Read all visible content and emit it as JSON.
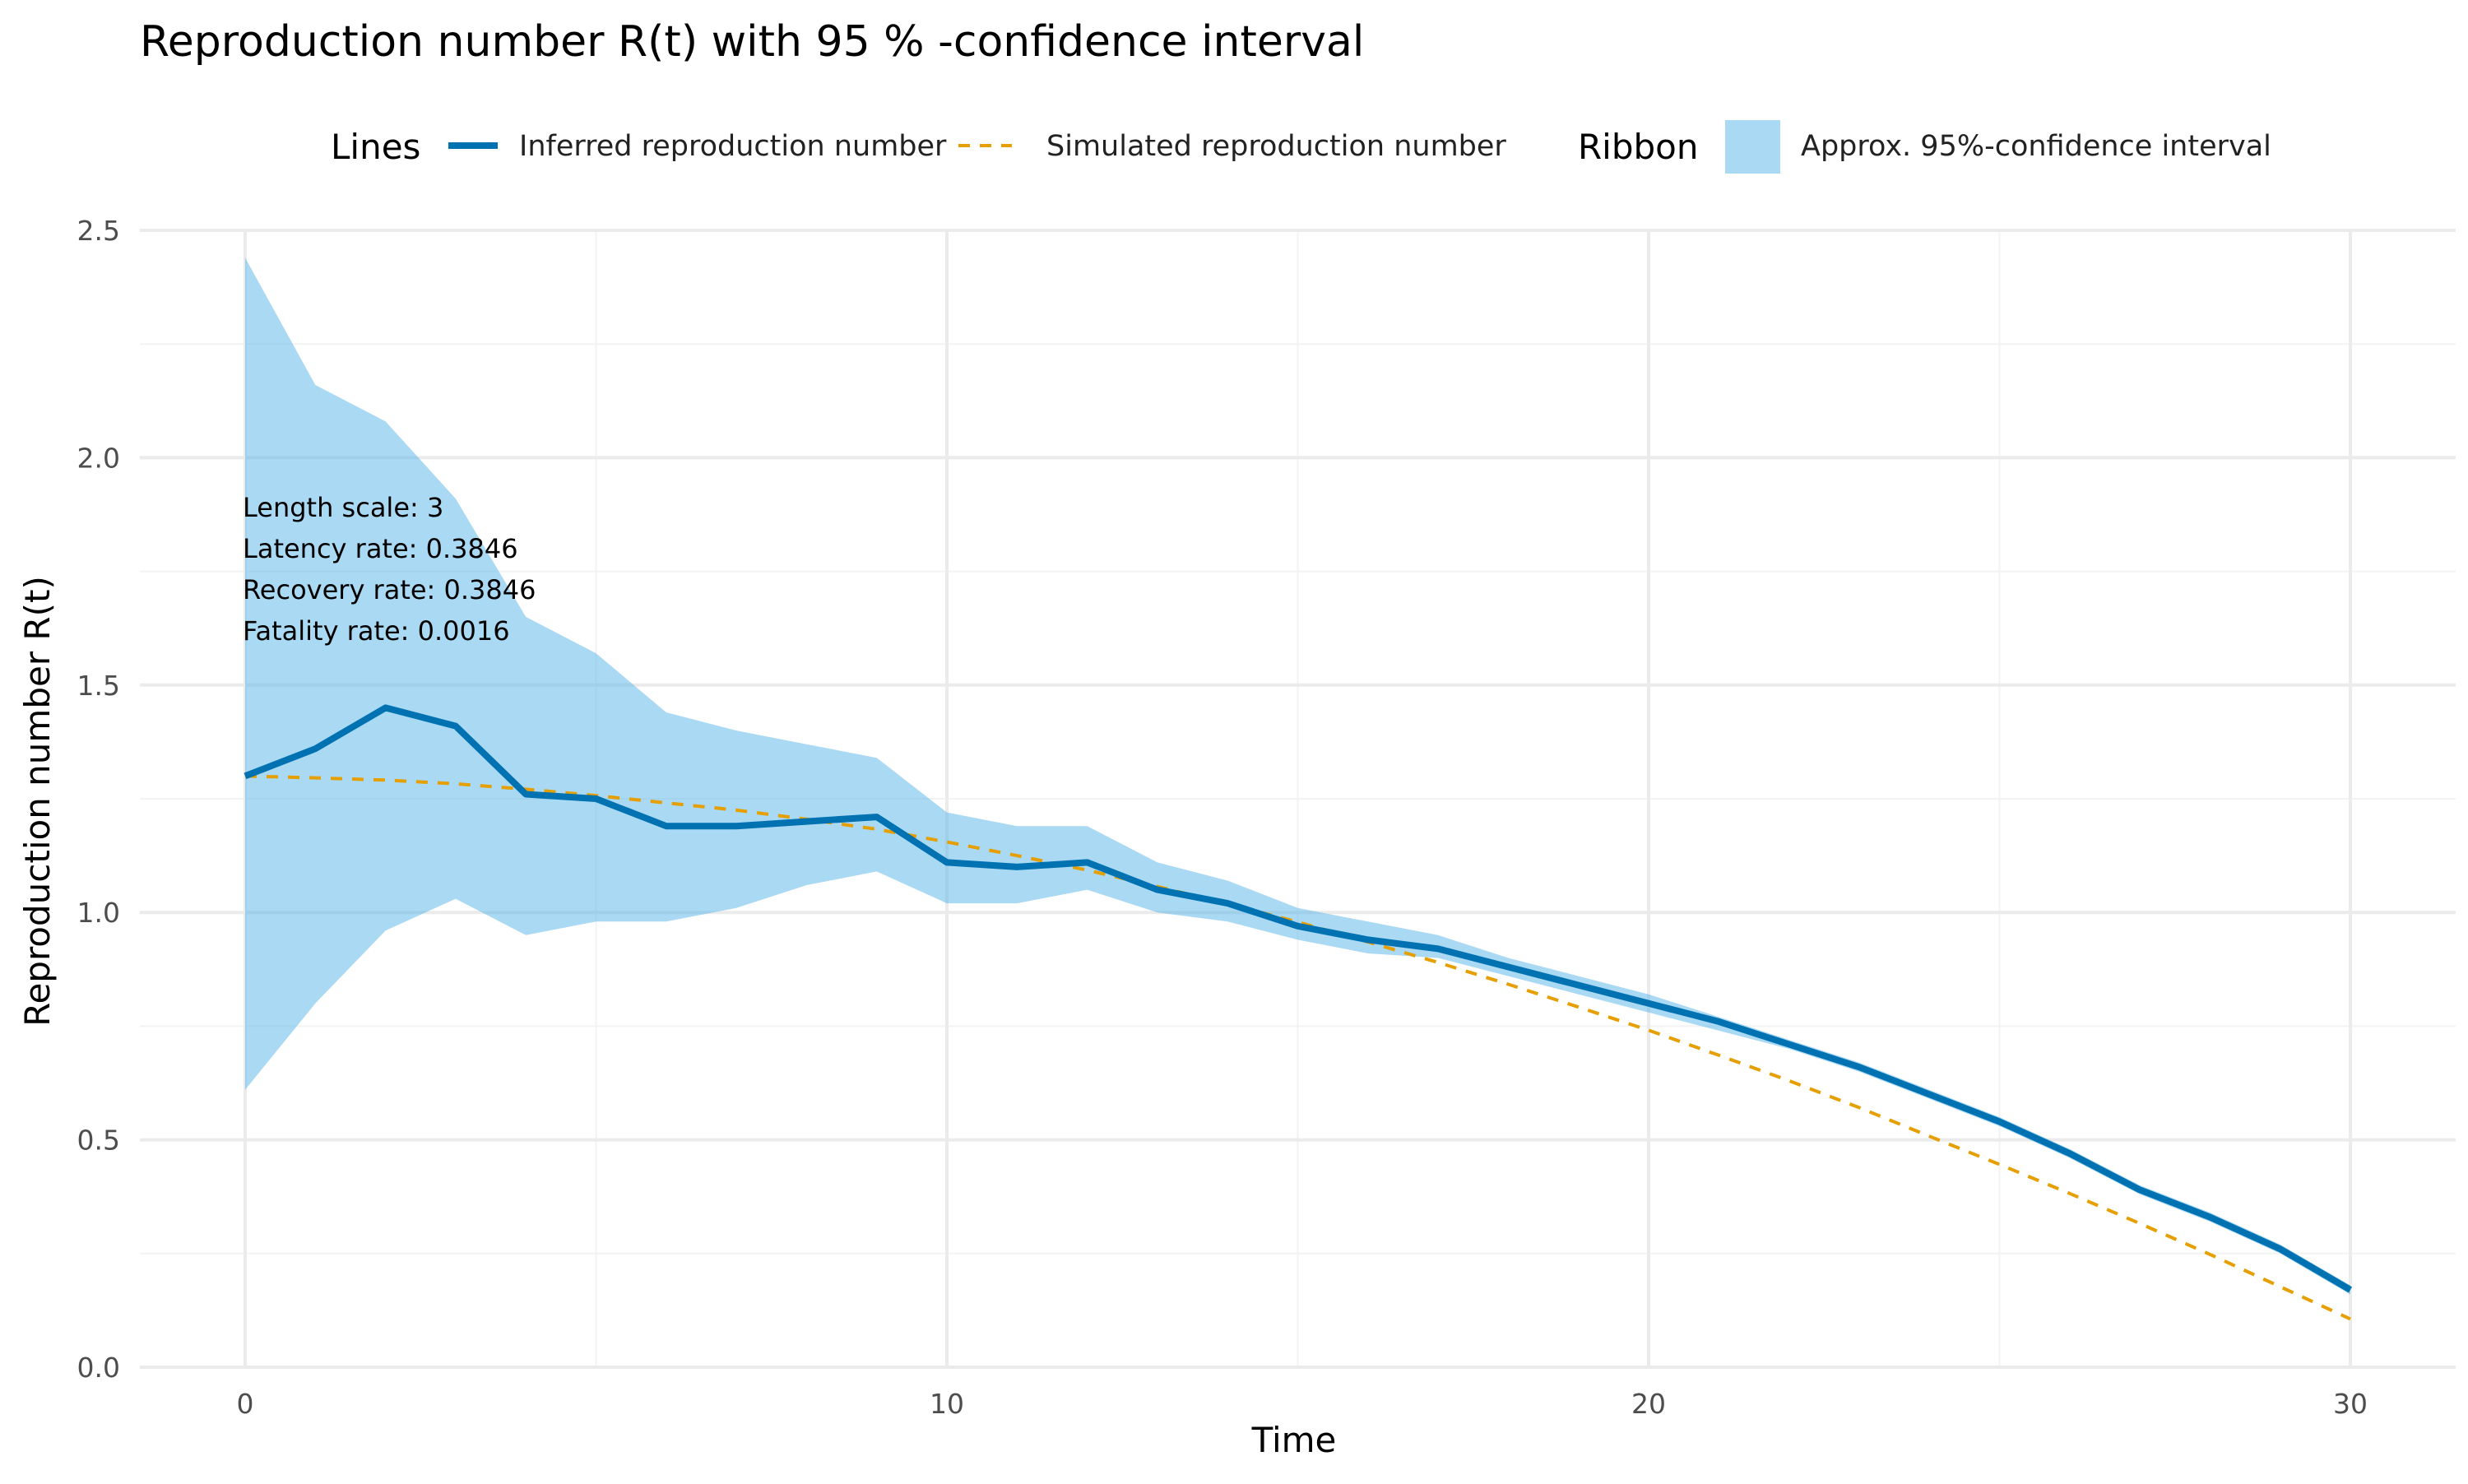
{
  "chart_data": {
    "type": "line",
    "title": "Reproduction number R(t) with 95 % -confidence interval",
    "xlabel": "Time",
    "ylabel": "Reproduction number R(t)",
    "xlim": [
      -1.5,
      31.5
    ],
    "ylim": [
      0,
      2.5
    ],
    "x_ticks": [
      0,
      10,
      20,
      30
    ],
    "x_tick_labels": [
      "0",
      "10",
      "20",
      "30"
    ],
    "y_ticks": [
      0,
      0.5,
      1,
      1.5,
      2,
      2.5
    ],
    "y_tick_labels": [
      "0.0",
      "0.5",
      "1.0",
      "1.5",
      "2.0",
      "2.5"
    ],
    "grid": true,
    "legend": {
      "position": "top",
      "groups": [
        {
          "title": "Lines",
          "entries": [
            {
              "label": "Inferred reproduction number",
              "style": "solid"
            },
            {
              "label": "Simulated reproduction number",
              "style": "dashed"
            }
          ]
        },
        {
          "title": "Ribbon",
          "entries": [
            {
              "label": "Approx. 95%-confidence interval",
              "style": "fill"
            }
          ]
        }
      ]
    },
    "annotations": [
      "Length scale: 3",
      "Latency rate: 0.3846",
      "Recovery rate: 0.3846",
      "Fatality rate: 0.0016"
    ],
    "x": [
      0,
      1,
      2,
      3,
      4,
      5,
      6,
      7,
      8,
      9,
      10,
      11,
      12,
      13,
      14,
      15,
      16,
      17,
      18,
      19,
      20,
      21,
      22,
      23,
      24,
      25,
      26,
      27,
      28,
      29,
      30
    ],
    "series": [
      {
        "name": "Inferred reproduction number",
        "kind": "line",
        "values": [
          1.3,
          1.36,
          1.45,
          1.41,
          1.26,
          1.25,
          1.19,
          1.19,
          1.2,
          1.21,
          1.11,
          1.1,
          1.11,
          1.05,
          1.02,
          0.97,
          0.94,
          0.92,
          0.88,
          0.84,
          0.8,
          0.76,
          0.71,
          0.66,
          0.6,
          0.54,
          0.47,
          0.39,
          0.33,
          0.26,
          0.17
        ]
      },
      {
        "name": "Simulated reproduction number",
        "kind": "line",
        "values": [
          1.3,
          1.296,
          1.291,
          1.283,
          1.271,
          1.257,
          1.241,
          1.225,
          1.205,
          1.183,
          1.155,
          1.125,
          1.093,
          1.057,
          1.019,
          0.979,
          0.935,
          0.89,
          0.842,
          0.792,
          0.741,
          0.686,
          0.63,
          0.571,
          0.508,
          0.446,
          0.382,
          0.316,
          0.248,
          0.177,
          0.106
        ]
      },
      {
        "name": "Approx. 95%-confidence interval",
        "kind": "ribbon",
        "lower": [
          0.61,
          0.8,
          0.96,
          1.03,
          0.95,
          0.98,
          0.98,
          1.01,
          1.06,
          1.09,
          1.02,
          1.02,
          1.05,
          1.0,
          0.98,
          0.94,
          0.91,
          0.9,
          0.86,
          0.82,
          0.78,
          0.74,
          0.7,
          0.65,
          0.59,
          0.53,
          0.46,
          0.38,
          0.32,
          0.25,
          0.16
        ],
        "upper": [
          2.44,
          2.16,
          2.08,
          1.91,
          1.65,
          1.57,
          1.44,
          1.4,
          1.37,
          1.34,
          1.22,
          1.19,
          1.19,
          1.11,
          1.07,
          1.01,
          0.98,
          0.95,
          0.9,
          0.86,
          0.82,
          0.77,
          0.72,
          0.67,
          0.61,
          0.55,
          0.48,
          0.4,
          0.34,
          0.27,
          0.18
        ]
      }
    ],
    "colors": {
      "inferred": "#0072b2",
      "simulated": "#e69f00",
      "ribbon": "#56b4e9",
      "grid_major": "#ebebeb",
      "grid_minor": "#f3f3f3"
    }
  }
}
